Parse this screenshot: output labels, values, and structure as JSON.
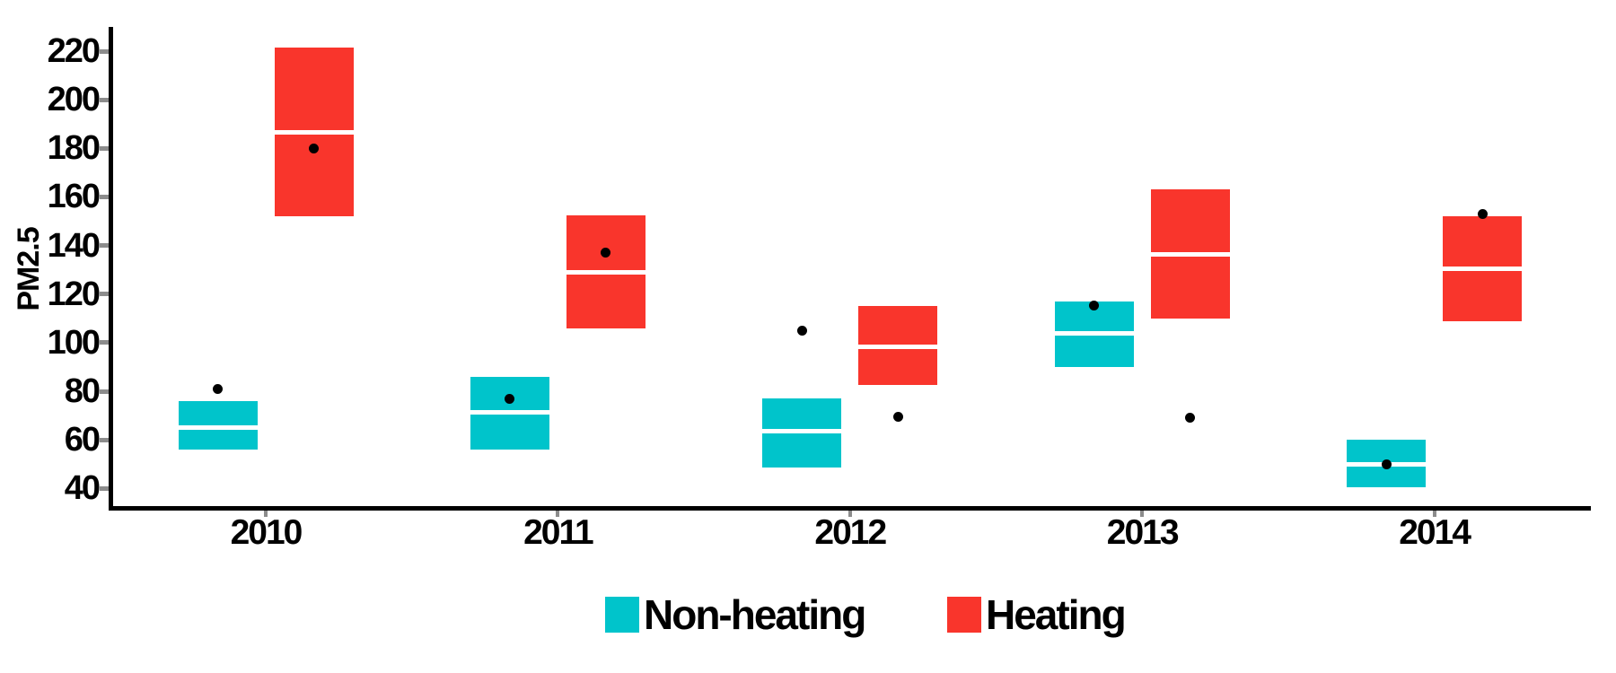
{
  "chart_data": {
    "type": "crossbar",
    "title": "",
    "ylabel": "PM2.5",
    "xlabel": "",
    "categories": [
      "2010",
      "2011",
      "2012",
      "2013",
      "2014"
    ],
    "y_ticks": [
      40,
      60,
      80,
      100,
      120,
      140,
      160,
      180,
      200,
      220
    ],
    "ylim": [
      33,
      228
    ],
    "grid": false,
    "legend_position": "bottom",
    "point_color": "#000000",
    "axis_color": "#000000",
    "tick_color": "#8c8c8c",
    "median_line_color": "#ffffff",
    "series": [
      {
        "name": "Non-heating",
        "color": "#00C4CB",
        "boxes": [
          {
            "category": "2010",
            "lower": 56,
            "middle": 65,
            "upper": 76,
            "point": 81
          },
          {
            "category": "2011",
            "lower": 56,
            "middle": 71.5,
            "upper": 86,
            "point": 77
          },
          {
            "category": "2012",
            "lower": 48.5,
            "middle": 63.5,
            "upper": 77,
            "point": 105
          },
          {
            "category": "2013",
            "lower": 90,
            "middle": 104,
            "upper": 117,
            "point": 115.5
          },
          {
            "category": "2014",
            "lower": 40.5,
            "middle": 50,
            "upper": 60,
            "point": 50
          }
        ]
      },
      {
        "name": "Heating",
        "color": "#F9352C",
        "boxes": [
          {
            "category": "2010",
            "lower": 152,
            "middle": 186.5,
            "upper": 221.5,
            "point": 180
          },
          {
            "category": "2011",
            "lower": 106,
            "middle": 129,
            "upper": 152.5,
            "point": 137
          },
          {
            "category": "2012",
            "lower": 82.5,
            "middle": 98.5,
            "upper": 115,
            "point": 69.5
          },
          {
            "category": "2013",
            "lower": 110,
            "middle": 136.5,
            "upper": 163,
            "point": 69
          },
          {
            "category": "2014",
            "lower": 109,
            "middle": 130.5,
            "upper": 152,
            "point": 153
          }
        ]
      }
    ]
  }
}
